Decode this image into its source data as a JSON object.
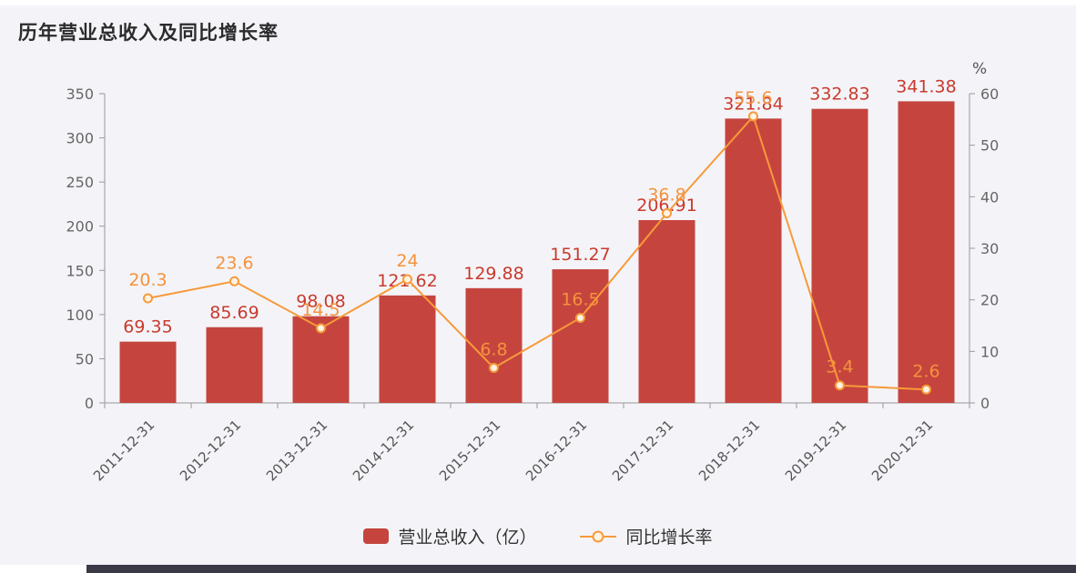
{
  "title": "历年营业总收入及同比增长率",
  "colors": {
    "background": "#f4f4f8",
    "bar": "#c5453e",
    "bar_label": "#c93a2d",
    "line": "#f79a3a",
    "line_label": "#f5923c",
    "marker_fill": "#fdf3e4",
    "axis": "#999999",
    "tick_text": "#666666",
    "x_tick_text": "#555555"
  },
  "legend": {
    "bar_label": "营业总收入（亿）",
    "line_label": "同比增长率"
  },
  "chart_data": {
    "type": "bar+line",
    "title": "历年营业总收入及同比增长率",
    "categories": [
      "2011-12-31",
      "2012-12-31",
      "2013-12-31",
      "2014-12-31",
      "2015-12-31",
      "2016-12-31",
      "2017-12-31",
      "2018-12-31",
      "2019-12-31",
      "2020-12-31"
    ],
    "series": [
      {
        "name": "营业总收入（亿）",
        "type": "bar",
        "axis": "left",
        "values": [
          69.35,
          85.69,
          98.08,
          121.62,
          129.88,
          151.27,
          206.91,
          321.84,
          332.83,
          341.38
        ]
      },
      {
        "name": "同比增长率",
        "type": "line",
        "axis": "right",
        "values": [
          20.3,
          23.6,
          14.5,
          24,
          6.8,
          16.5,
          36.8,
          55.6,
          3.4,
          2.6
        ]
      }
    ],
    "left_axis": {
      "min": 0,
      "max": 350,
      "ticks": [
        0,
        50,
        100,
        150,
        200,
        250,
        300,
        350
      ]
    },
    "right_axis": {
      "min": 0,
      "max": 60,
      "ticks": [
        0,
        10,
        20,
        30,
        40,
        50,
        60
      ],
      "unit": "%"
    },
    "grid": false,
    "legend_position": "bottom"
  }
}
